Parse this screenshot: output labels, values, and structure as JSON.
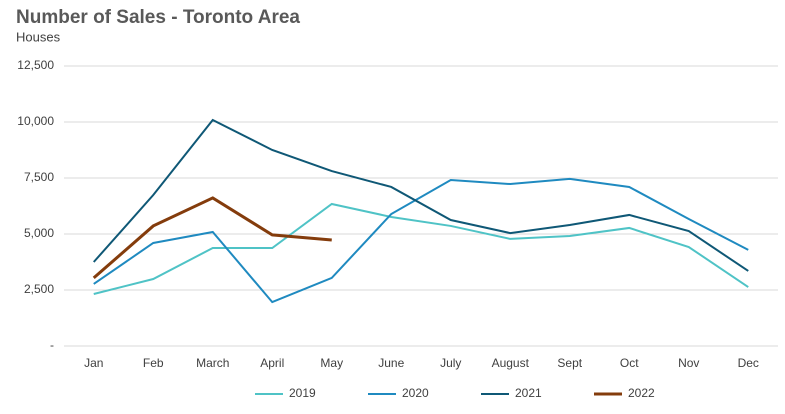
{
  "chart_data": {
    "type": "line",
    "title": "Number of Sales - Toronto Area",
    "subtitle": "Houses",
    "categories": [
      "Jan",
      "Feb",
      "March",
      "April",
      "May",
      "June",
      "July",
      "August",
      "Sept",
      "Oct",
      "Nov",
      "Dec"
    ],
    "series": [
      {
        "name": "2019",
        "color": "#4fc3c6",
        "values": [
          2320,
          2990,
          4375,
          4375,
          6340,
          5760,
          5360,
          4780,
          4910,
          5270,
          4420,
          2630
        ]
      },
      {
        "name": "2020",
        "color": "#1f8ac0",
        "values": [
          2770,
          4600,
          5090,
          1960,
          3040,
          5890,
          7410,
          7230,
          7460,
          7100,
          5670,
          4290
        ]
      },
      {
        "name": "2021",
        "color": "#0f5876",
        "values": [
          3750,
          6740,
          10090,
          8750,
          7810,
          7100,
          5625,
          5040,
          5400,
          5850,
          5130,
          3350
        ]
      },
      {
        "name": "2022",
        "color": "#843c0c",
        "values": [
          3040,
          5360,
          6610,
          4960,
          4730,
          null,
          null,
          null,
          null,
          null,
          null,
          null
        ]
      }
    ],
    "ylim": [
      0,
      12500
    ],
    "yticks": [
      {
        "value": 0,
        "label": "-"
      },
      {
        "value": 2500,
        "label": "2,500"
      },
      {
        "value": 5000,
        "label": "5,000"
      },
      {
        "value": 7500,
        "label": "7,500"
      },
      {
        "value": 10000,
        "label": "10,000"
      },
      {
        "value": 12500,
        "label": "12,500"
      }
    ],
    "grid": true,
    "legend": "bottom"
  }
}
